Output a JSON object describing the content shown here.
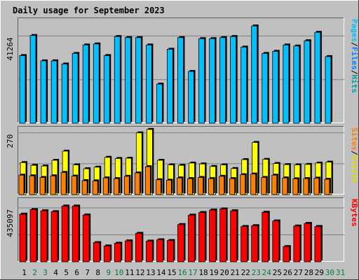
{
  "chart_data": {
    "type": "bar",
    "title": "Daily usage for September 2023",
    "colors": {
      "background": "#c0c0c0",
      "plot": "#c0c0c0",
      "title": "#0000cc",
      "hits": "#00c0ff",
      "files": "#0080ff",
      "pages": "#00e0e0",
      "visits": "#ffff00",
      "sites": "#ff8000",
      "kbytes": "#ff0000",
      "weekend_label": "#008040",
      "weekday_label": "#000000"
    },
    "days": [
      "1",
      "2",
      "3",
      "4",
      "5",
      "6",
      "7",
      "8",
      "9",
      "10",
      "11",
      "12",
      "13",
      "14",
      "15",
      "16",
      "17",
      "18",
      "19",
      "20",
      "21",
      "22",
      "23",
      "24",
      "25",
      "26",
      "27",
      "28",
      "29",
      "30",
      "31"
    ],
    "weekend_days": [
      2,
      3,
      9,
      10,
      16,
      17,
      23,
      24,
      30,
      31
    ],
    "panels": [
      {
        "id": "hits",
        "y_tick_label": "41264",
        "y_tick_value": 41264,
        "ylim": [
          0,
          50000
        ],
        "legend": [
          "Pages",
          "/",
          "Files",
          "/",
          "Hits"
        ],
        "legend_colors": [
          "#00c0ff",
          "#000000",
          "#0080ff",
          "#000000",
          "#00a0a0"
        ],
        "series": [
          {
            "name": "Hits",
            "values": [
              32000,
              41500,
              29500,
              29500,
              28000,
              33000,
              37000,
              37500,
              32000,
              41000,
              40500,
              40500,
              37000,
              18500,
              35000,
              40500,
              24500,
              40000,
              40000,
              40500,
              41000,
              36000,
              46000,
              33000,
              34000,
              37000,
              36500,
              39000,
              43000,
              31500,
              0
            ]
          }
        ]
      },
      {
        "id": "visits",
        "y_tick_label": "270",
        "y_tick_value": 270,
        "ylim": [
          0,
          300
        ],
        "legend": [
          "Sites",
          "/",
          "Visits"
        ],
        "legend_colors": [
          "#ff8000",
          "#000000",
          "#e0e000"
        ],
        "series": [
          {
            "name": "Visits",
            "values": [
              140,
              128,
              125,
              150,
              190,
              130,
              113,
              120,
              163,
              158,
              159,
              270,
              285,
              150,
              130,
              128,
              138,
              134,
              123,
              130,
              114,
              153,
              228,
              154,
              136,
              131,
              130,
              132,
              138,
              142,
              0
            ]
          },
          {
            "name": "Sites",
            "values": [
              85,
              82,
              75,
              82,
              97,
              81,
              61,
              60,
              73,
              70,
              80,
              95,
              122,
              65,
              63,
              73,
              70,
              75,
              70,
              80,
              70,
              87,
              90,
              75,
              85,
              73,
              69,
              70,
              72,
              67,
              0
            ]
          }
        ]
      },
      {
        "id": "kbytes",
        "y_tick_label": "435097",
        "y_tick_value": 435097,
        "ylim": [
          0,
          520000
        ],
        "legend": [
          "KBytes"
        ],
        "legend_colors": [
          "#ff0000"
        ],
        "series": [
          {
            "name": "KBytes",
            "values": [
              385000,
              422000,
              412000,
              405000,
              450000,
              450000,
              378000,
              155000,
              128000,
              150000,
              169000,
              230000,
              167000,
              178000,
              172000,
              301000,
              377000,
              398000,
              418000,
              427000,
              412000,
              285000,
              292000,
              400000,
              330000,
              123000,
              289000,
              310000,
              285000,
              0,
              0
            ]
          }
        ]
      }
    ]
  }
}
